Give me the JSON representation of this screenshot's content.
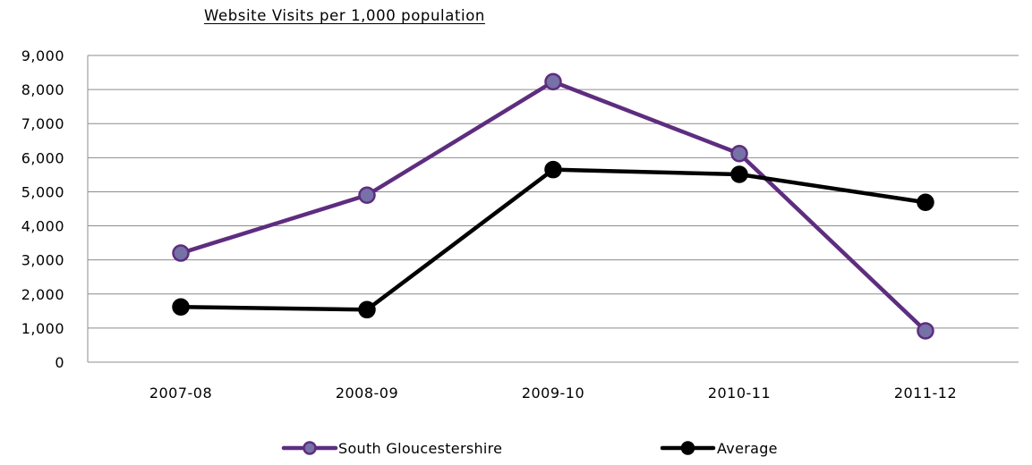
{
  "chart_data": {
    "type": "line",
    "title": "Website Visits per 1,000 population",
    "xlabel": "",
    "ylabel": "",
    "categories": [
      "2007-08",
      "2008-09",
      "2009-10",
      "2010-11",
      "2011-12"
    ],
    "ylim": [
      0,
      9000
    ],
    "yticks": [
      0,
      1000,
      2000,
      3000,
      4000,
      5000,
      6000,
      7000,
      8000,
      9000
    ],
    "ytick_labels": [
      "0",
      "1,000",
      "2,000",
      "3,000",
      "4,000",
      "5,000",
      "6,000",
      "7,000",
      "8,000",
      "9,000"
    ],
    "grid": true,
    "legend_position": "bottom",
    "series": [
      {
        "name": "South Gloucestershire",
        "values": [
          3200,
          4900,
          8230,
          6120,
          920
        ],
        "line_color": "#5e2d7f",
        "marker_color": "#7671a6",
        "marker": "circle"
      },
      {
        "name": "Average",
        "values": [
          1620,
          1540,
          5650,
          5510,
          4690
        ],
        "line_color": "#000000",
        "marker_color": "#000000",
        "marker": "circle"
      }
    ]
  }
}
